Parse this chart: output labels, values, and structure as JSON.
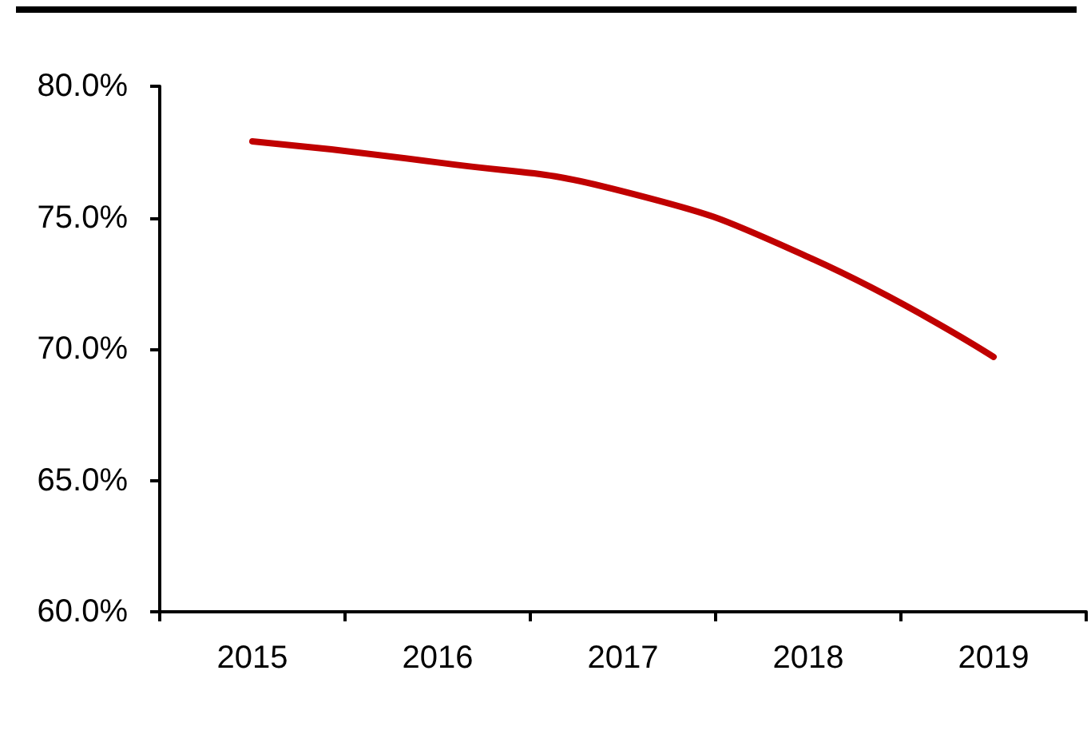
{
  "chart_data": {
    "type": "line",
    "categories": [
      "2015",
      "2016",
      "2017",
      "2018",
      "2019"
    ],
    "series": [
      {
        "color": "#c00000",
        "values": [
          77.9,
          77.1,
          76.0,
          73.5,
          69.7
        ]
      }
    ],
    "ylim": [
      60,
      80
    ],
    "yticks": [
      {
        "value": 60,
        "label": "60.0%"
      },
      {
        "value": 65,
        "label": "65.0%"
      },
      {
        "value": 70,
        "label": "70.0%"
      },
      {
        "value": 75,
        "label": "75.0%"
      },
      {
        "value": 80,
        "label": "80.0%"
      }
    ],
    "grid": false,
    "marker": "none",
    "line_style": "solid"
  }
}
